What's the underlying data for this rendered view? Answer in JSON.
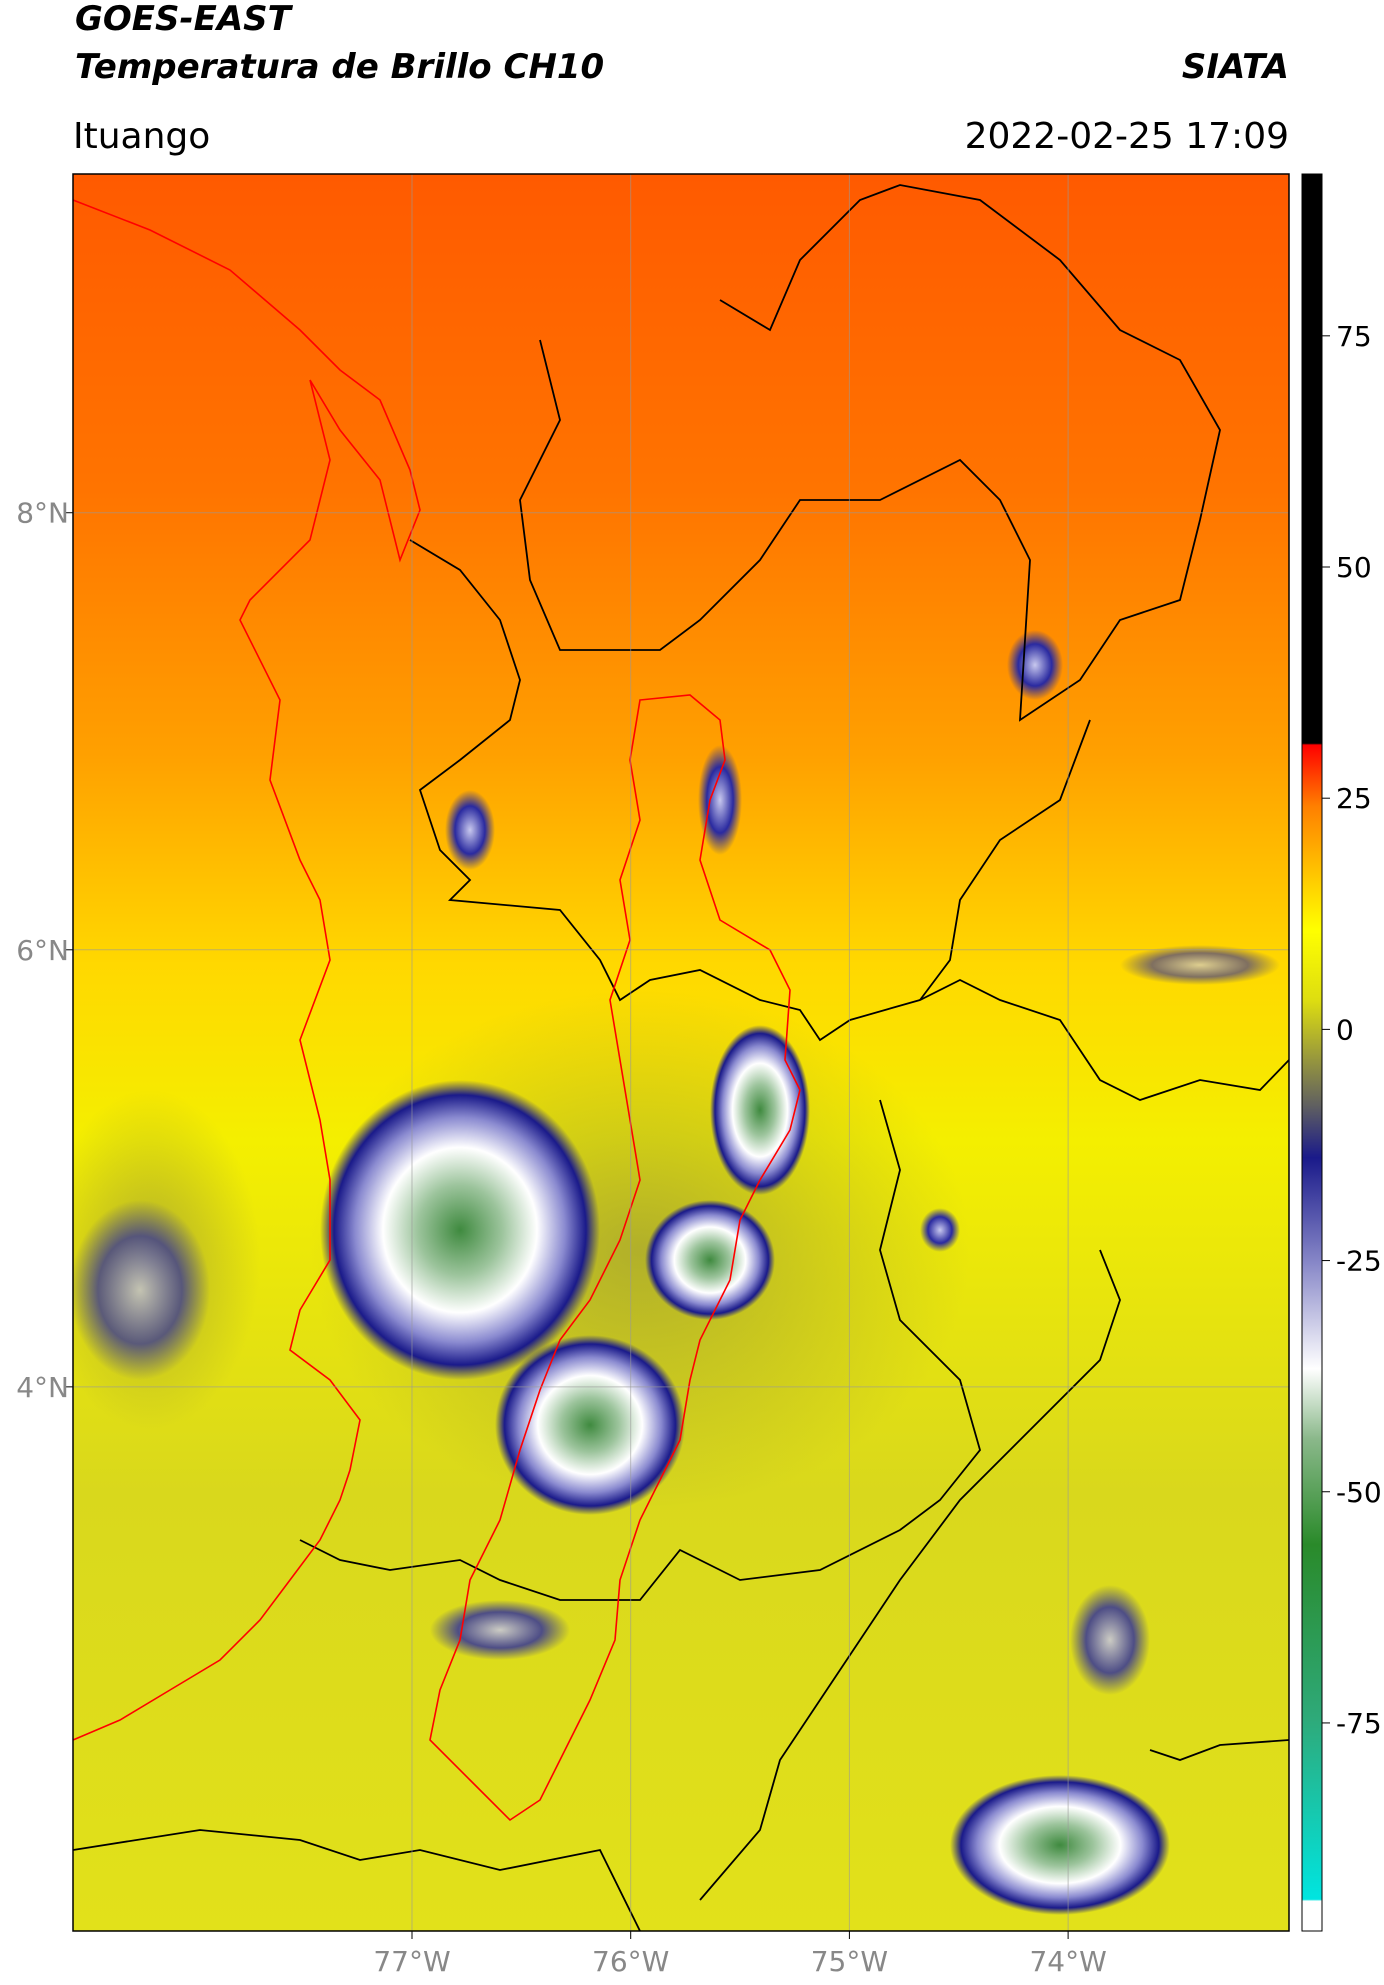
{
  "map": {
    "title": "GOES-EAST",
    "subtitle": "Temperatura de Brillo CH10",
    "source": "SIATA",
    "region": "Ituango",
    "timestamp": "2022-02-25 17:09",
    "lonlim": [
      -78.55,
      -72.99
    ],
    "latlim": [
      1.51,
      9.55
    ],
    "lonticks": [
      {
        "value": -77,
        "label": "77°W"
      },
      {
        "value": -76,
        "label": "76°W"
      },
      {
        "value": -75,
        "label": "75°W"
      },
      {
        "value": -74,
        "label": "74°W"
      }
    ],
    "latticks": [
      {
        "value": 8,
        "label": "8°N"
      },
      {
        "value": 6,
        "label": "6°N"
      },
      {
        "value": 4,
        "label": "4°N"
      }
    ],
    "grid": true,
    "colorbar": {
      "lim": [
        -97.5,
        92.5
      ],
      "ticks": [
        75,
        50,
        25,
        0,
        -25,
        -50,
        -75
      ]
    }
  }
}
